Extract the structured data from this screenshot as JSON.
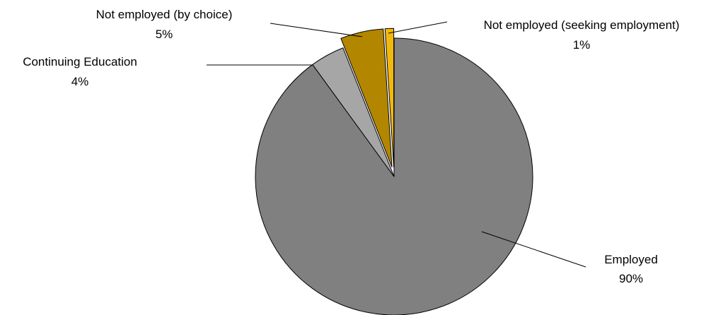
{
  "chart_data": {
    "type": "pie",
    "title": "",
    "legend": "none",
    "start_angle_deg": 0,
    "direction": "clockwise",
    "slices": [
      {
        "name": "Employed",
        "value": 90,
        "label": "90%",
        "color": "#808080",
        "offset": 0
      },
      {
        "name": "Continuing Education",
        "value": 4,
        "label": "4%",
        "color": "#a6a6a6",
        "offset": 0
      },
      {
        "name": "Not employed (by choice)",
        "value": 5,
        "label": "5%",
        "color": "#b38600",
        "offset": 0.07
      },
      {
        "name": "Not employed (seeking employment)",
        "value": 1,
        "label": "1%",
        "color": "#f2b90d",
        "offset": 0.07
      }
    ]
  }
}
